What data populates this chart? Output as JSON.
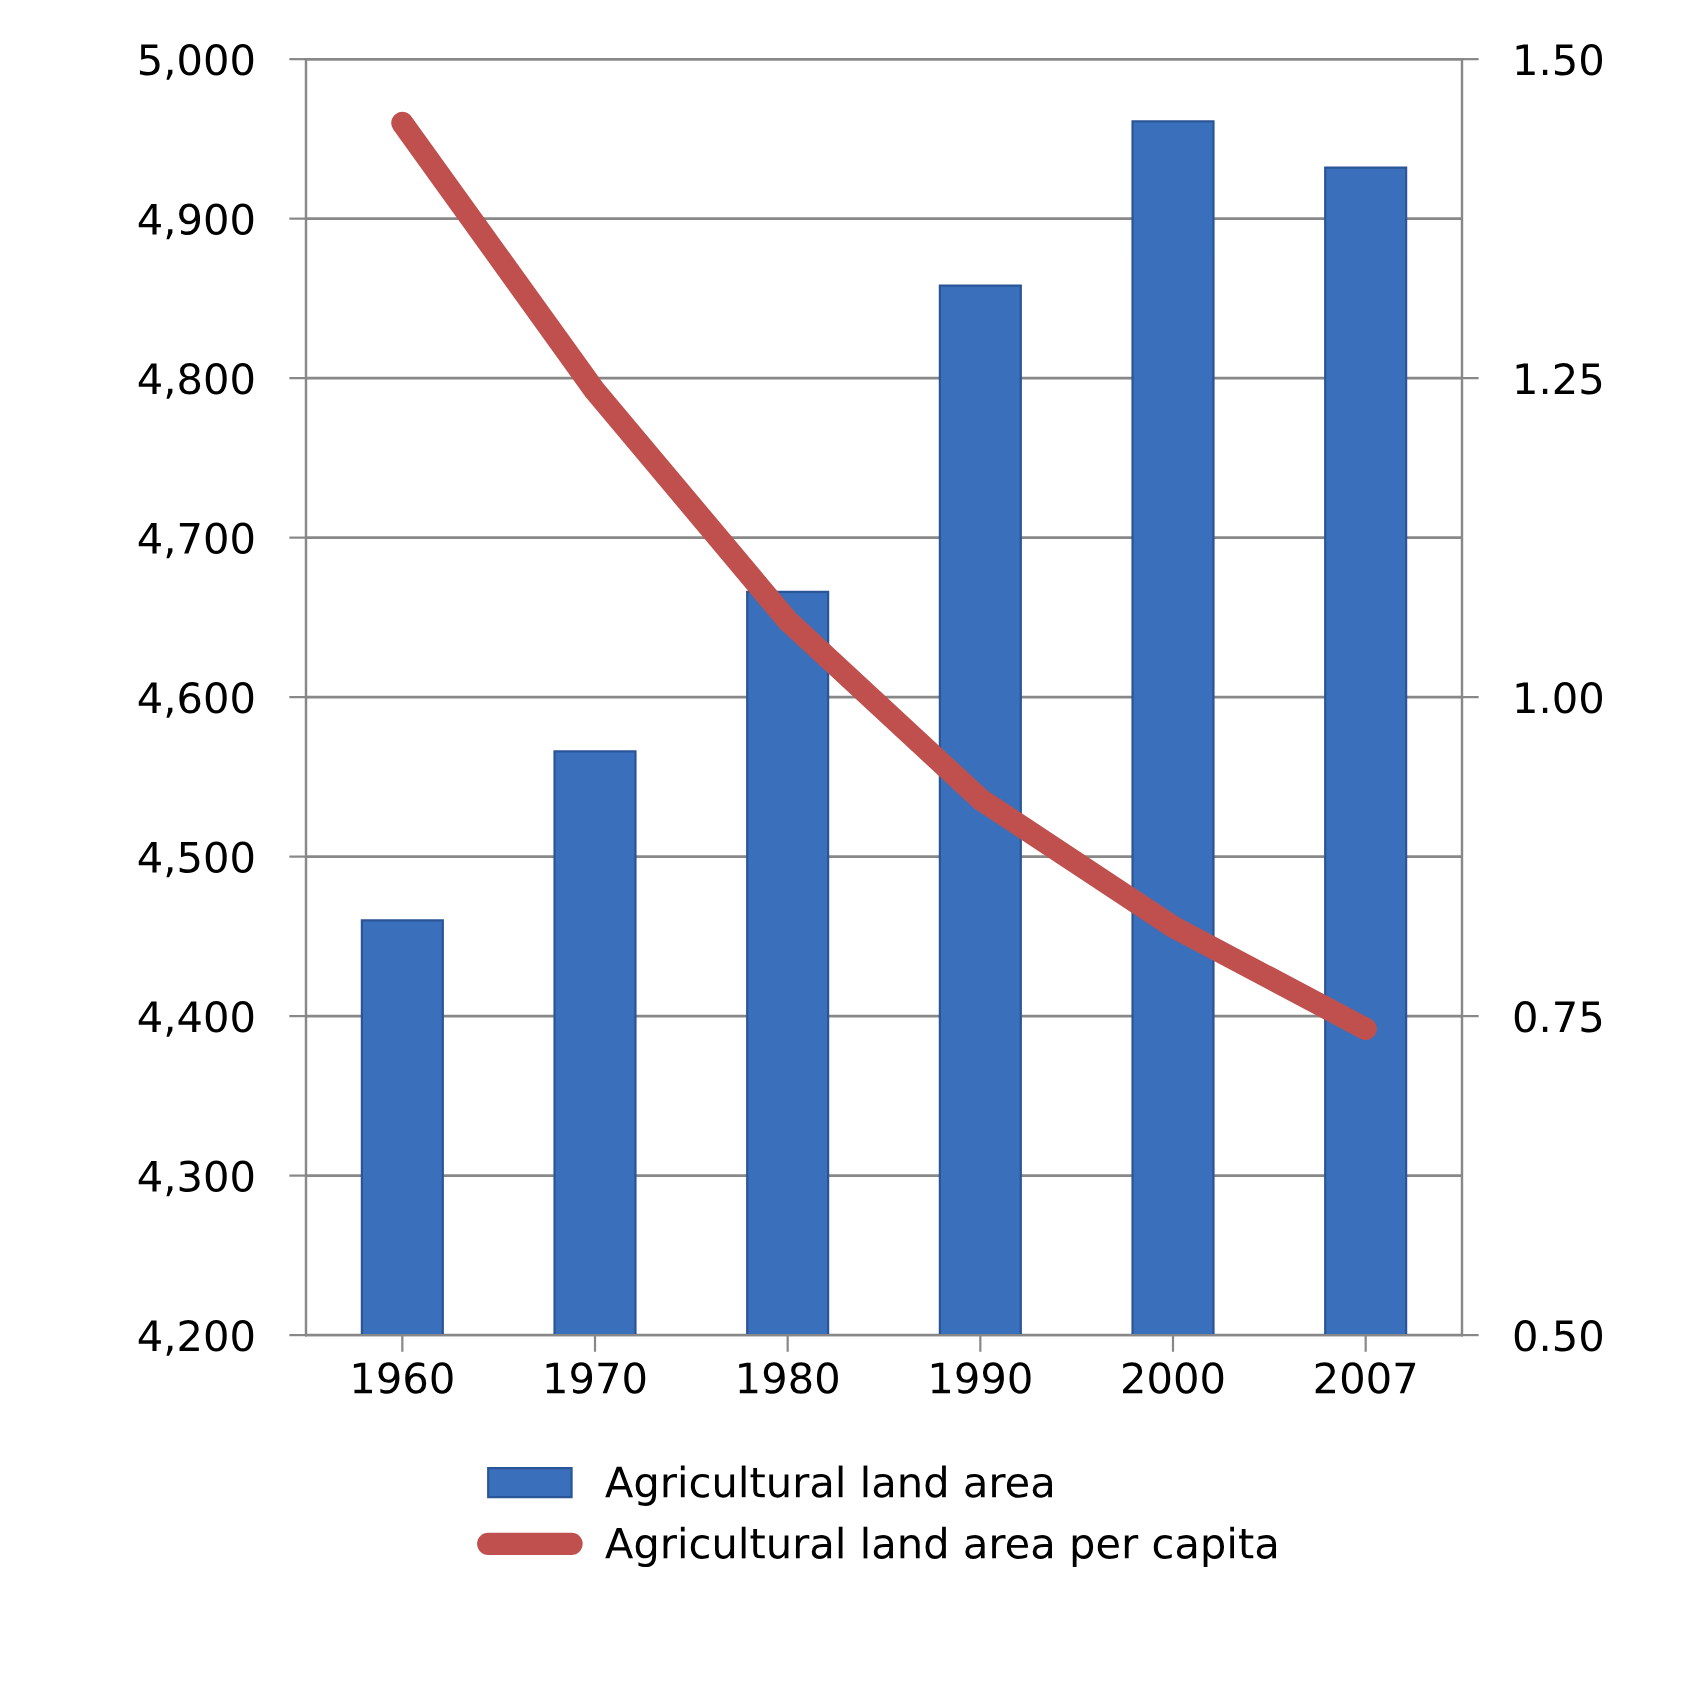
{
  "chart_data": {
    "type": "bar",
    "categories": [
      "1960",
      "1970",
      "1980",
      "1990",
      "2000",
      "2007"
    ],
    "series": [
      {
        "name": "Agricultural land area",
        "color": "#3a70bb",
        "values": [
          4460,
          4566,
          4666,
          4858,
          4961,
          4932
        ]
      },
      {
        "name": "Agricultural land area per capita",
        "type": "line",
        "axis": "y2",
        "color": "#c0504d",
        "values": [
          1.45,
          1.24,
          1.06,
          0.92,
          0.82,
          0.74
        ]
      }
    ],
    "ylim": [
      4200,
      5000
    ],
    "yticks": [
      {
        "value": 4200,
        "label": "4,200"
      },
      {
        "value": 4300,
        "label": "4,300"
      },
      {
        "value": 4400,
        "label": "4,400"
      },
      {
        "value": 4500,
        "label": "4,500"
      },
      {
        "value": 4600,
        "label": "4,600"
      },
      {
        "value": 4700,
        "label": "4,700"
      },
      {
        "value": 4800,
        "label": "4,800"
      },
      {
        "value": 4900,
        "label": "4,900"
      },
      {
        "value": 5000,
        "label": "5,000"
      }
    ],
    "y2lim": [
      0.5,
      1.5
    ],
    "y2ticks": [
      {
        "value": 0.5,
        "label": "0.50"
      },
      {
        "value": 0.75,
        "label": "0.75"
      },
      {
        "value": 1.0,
        "label": "1.00"
      },
      {
        "value": 1.25,
        "label": "1.25"
      },
      {
        "value": 1.5,
        "label": "1.50"
      }
    ],
    "grid": "y",
    "legend": "bottom",
    "line_style": "solid"
  }
}
